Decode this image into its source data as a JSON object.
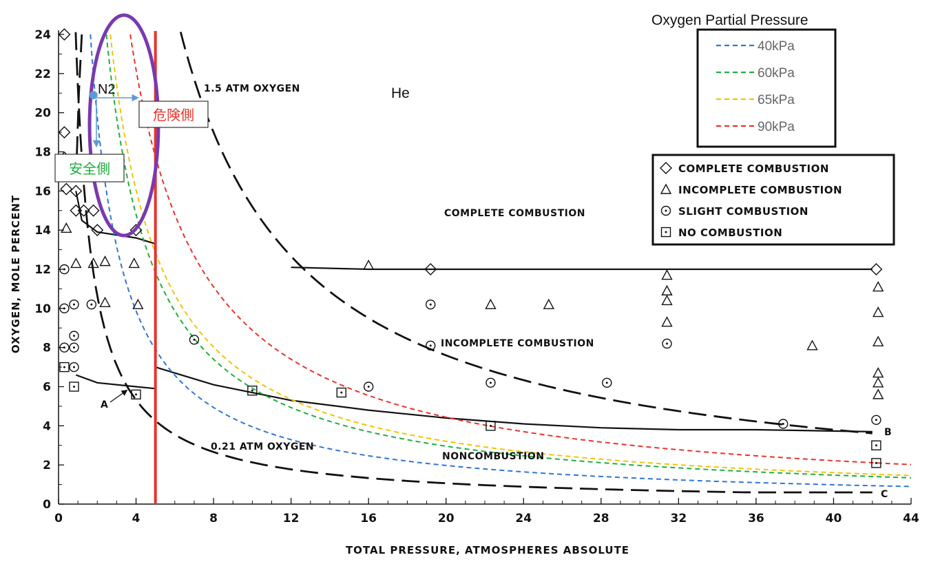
{
  "chart_data": {
    "type": "scatter",
    "xlabel": "TOTAL PRESSURE, ATMOSPHERES ABSOLUTE",
    "ylabel": "OXYGEN, MOLE PERCENT",
    "xlim": [
      0,
      44
    ],
    "ylim": [
      0,
      24
    ],
    "x_ticks": [
      "0",
      "4",
      "8",
      "12",
      "16",
      "20",
      "24",
      "28",
      "32",
      "36",
      "40",
      "44"
    ],
    "y_ticks": [
      "0",
      "2",
      "4",
      "6",
      "8",
      "10",
      "12",
      "14",
      "16",
      "18",
      "20",
      "22",
      "24"
    ],
    "grid": false,
    "region_labels": {
      "complete": "COMPLETE COMBUSTION",
      "incomplete": "INCOMPLETE COMBUSTION",
      "noncombustion": "NONCOMBUSTION"
    },
    "curve_labels": {
      "oxy15": "1.5 ATM OXYGEN",
      "oxy021": "0.21 ATM OXYGEN",
      "A": "A",
      "B": "B",
      "C": "C"
    },
    "annotations": {
      "he": "He",
      "n2": "N2",
      "danger": "危険側",
      "safe": "安全側"
    },
    "n2_point": {
      "x": 1.8,
      "y": 20.9
    },
    "limit_line_x": 5.0,
    "boundaries": {
      "upper_left": [
        [
          0.9,
          16
        ],
        [
          1.2,
          14.5
        ],
        [
          2,
          13.9
        ],
        [
          4,
          13.6
        ],
        [
          5,
          13.3
        ]
      ],
      "upper_right": [
        [
          12,
          12.1
        ],
        [
          16,
          12
        ],
        [
          20,
          12
        ],
        [
          30,
          12
        ],
        [
          42,
          12
        ]
      ],
      "lower_left": [
        [
          0.9,
          6.6
        ],
        [
          2,
          6.2
        ],
        [
          4,
          6
        ],
        [
          5,
          5.9
        ]
      ],
      "lower_right": [
        [
          5,
          7
        ],
        [
          8,
          6.1
        ],
        [
          12,
          5.3
        ],
        [
          16,
          4.8
        ],
        [
          20,
          4.4
        ],
        [
          24,
          4.1
        ],
        [
          28,
          3.9
        ],
        [
          32,
          3.8
        ],
        [
          36,
          3.8
        ],
        [
          42,
          3.7
        ]
      ]
    },
    "dashed_curves": {
      "oxy15": {
        "k": 152,
        "x0": 6.3,
        "x1": 42
      },
      "oxy021": {
        "k": 21.3,
        "x0": 0.8,
        "x1": 42,
        "floor": 0.6
      }
    },
    "legend_partial_pressure": {
      "title": "Oxygen Partial Pressure",
      "placement": "top-right",
      "items": [
        {
          "label": "40kPa",
          "color": "#2E75D6",
          "k": 39.5
        },
        {
          "label": "60kPa",
          "color": "#1DAE3E",
          "k": 59.2
        },
        {
          "label": "65kPa",
          "color": "#F2C200",
          "k": 64.2
        },
        {
          "label": "90kPa",
          "color": "#E8322B",
          "k": 88.8
        }
      ]
    },
    "legend_markers": {
      "placement": "right",
      "items": [
        {
          "symbol": "diamond",
          "label": "COMPLETE COMBUSTION"
        },
        {
          "symbol": "triangle",
          "label": "INCOMPLETE COMBUSTION"
        },
        {
          "symbol": "circle",
          "label": "SLIGHT COMBUSTION"
        },
        {
          "symbol": "square",
          "label": "NO COMBUSTION"
        }
      ]
    },
    "points": [
      {
        "s": "diamond",
        "x": 0.3,
        "y": 24
      },
      {
        "s": "diamond",
        "x": 0.3,
        "y": 19
      },
      {
        "s": "diamond",
        "x": 0.3,
        "y": 17.7
      },
      {
        "s": "diamond",
        "x": 0.4,
        "y": 16.1
      },
      {
        "s": "diamond",
        "x": 0.9,
        "y": 16
      },
      {
        "s": "diamond",
        "x": 0.9,
        "y": 15
      },
      {
        "s": "diamond",
        "x": 1.3,
        "y": 15
      },
      {
        "s": "diamond",
        "x": 1.8,
        "y": 15
      },
      {
        "s": "diamond",
        "x": 2,
        "y": 14
      },
      {
        "s": "diamond",
        "x": 4,
        "y": 14
      },
      {
        "s": "diamond",
        "x": 19.2,
        "y": 12
      },
      {
        "s": "diamond",
        "x": 42.2,
        "y": 12
      },
      {
        "s": "triangle",
        "x": 0.4,
        "y": 14.1
      },
      {
        "s": "triangle",
        "x": 0.9,
        "y": 12.3
      },
      {
        "s": "triangle",
        "x": 1.8,
        "y": 12.3
      },
      {
        "s": "triangle",
        "x": 2.4,
        "y": 12.4
      },
      {
        "s": "triangle",
        "x": 3.9,
        "y": 12.3
      },
      {
        "s": "triangle",
        "x": 2.4,
        "y": 10.3
      },
      {
        "s": "triangle",
        "x": 4.1,
        "y": 10.2
      },
      {
        "s": "triangle",
        "x": 16,
        "y": 12.2
      },
      {
        "s": "triangle",
        "x": 22.3,
        "y": 10.2
      },
      {
        "s": "triangle",
        "x": 25.3,
        "y": 10.2
      },
      {
        "s": "triangle",
        "x": 31.4,
        "y": 11.7
      },
      {
        "s": "triangle",
        "x": 31.4,
        "y": 10.9
      },
      {
        "s": "triangle",
        "x": 31.4,
        "y": 10.4
      },
      {
        "s": "triangle",
        "x": 31.4,
        "y": 9.3
      },
      {
        "s": "triangle",
        "x": 38.9,
        "y": 8.1
      },
      {
        "s": "triangle",
        "x": 42.3,
        "y": 11.1
      },
      {
        "s": "triangle",
        "x": 42.3,
        "y": 9.8
      },
      {
        "s": "triangle",
        "x": 42.3,
        "y": 8.3
      },
      {
        "s": "triangle",
        "x": 42.3,
        "y": 6.7
      },
      {
        "s": "triangle",
        "x": 42.3,
        "y": 6.2
      },
      {
        "s": "triangle",
        "x": 42.3,
        "y": 5.6
      },
      {
        "s": "circle",
        "x": 0.3,
        "y": 12
      },
      {
        "s": "circle",
        "x": 0.3,
        "y": 10
      },
      {
        "s": "circle",
        "x": 0.3,
        "y": 8
      },
      {
        "s": "circle",
        "x": 0.8,
        "y": 10.2
      },
      {
        "s": "circle",
        "x": 0.8,
        "y": 8.6
      },
      {
        "s": "circle",
        "x": 0.8,
        "y": 8
      },
      {
        "s": "circle",
        "x": 0.8,
        "y": 7
      },
      {
        "s": "circle",
        "x": 1.7,
        "y": 10.2
      },
      {
        "s": "circle",
        "x": 7,
        "y": 8.4
      },
      {
        "s": "circle",
        "x": 16,
        "y": 6
      },
      {
        "s": "circle",
        "x": 19.2,
        "y": 10.2
      },
      {
        "s": "circle",
        "x": 19.2,
        "y": 8.1
      },
      {
        "s": "circle",
        "x": 22.3,
        "y": 6.2
      },
      {
        "s": "circle",
        "x": 28.3,
        "y": 6.2
      },
      {
        "s": "circle",
        "x": 31.4,
        "y": 8.2
      },
      {
        "s": "circle",
        "x": 37.4,
        "y": 4.1
      },
      {
        "s": "circle",
        "x": 42.2,
        "y": 4.3
      },
      {
        "s": "square",
        "x": 0.3,
        "y": 7
      },
      {
        "s": "square",
        "x": 0.8,
        "y": 6
      },
      {
        "s": "square",
        "x": 4,
        "y": 5.6
      },
      {
        "s": "square",
        "x": 10,
        "y": 5.8
      },
      {
        "s": "square",
        "x": 14.6,
        "y": 5.7
      },
      {
        "s": "square",
        "x": 22.3,
        "y": 4
      },
      {
        "s": "square",
        "x": 42.2,
        "y": 3
      },
      {
        "s": "square",
        "x": 42.2,
        "y": 2.1
      }
    ]
  }
}
